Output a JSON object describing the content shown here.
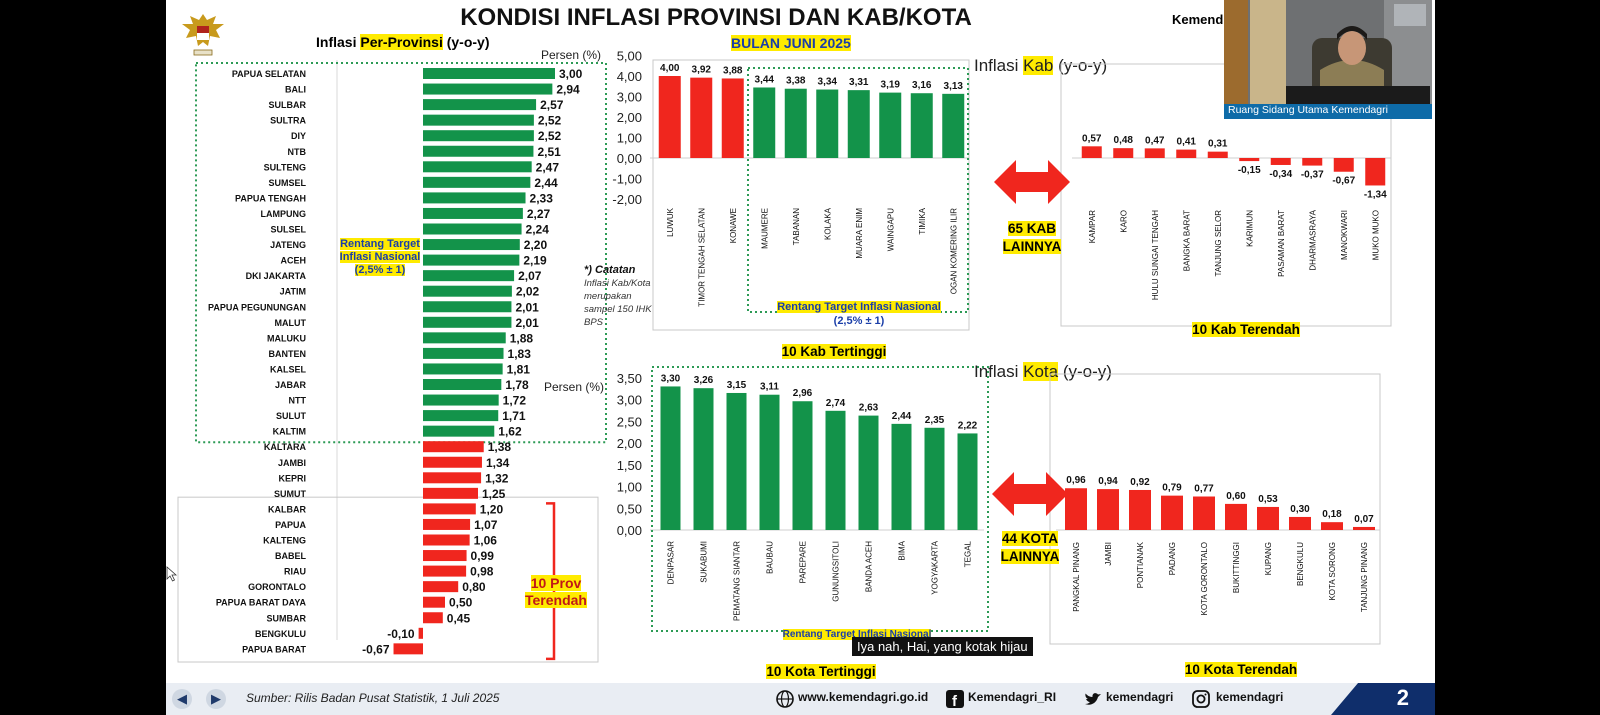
{
  "title": "KONDISI INFLASI PROVINSI DAN KAB/KOTA",
  "month": "BULAN JUNI 2025",
  "header_right": "Kemend",
  "colors": {
    "green": "#13934a",
    "red": "#f0261e",
    "highlight": "#ffeb00",
    "dotted": "#2c9a55",
    "navy": "#0f2e6b"
  },
  "prov": {
    "title_pre": "Inflasi ",
    "title_hl": "Per-Provinsi",
    "title_post": " (y-o-y)",
    "unit": "Persen (%)",
    "target_box": [
      "Rentang Target",
      "Inflasi Nasional",
      "(2,5% ± 1)"
    ],
    "bottom_label": [
      "10 Prov",
      "Terendah"
    ]
  },
  "note": {
    "head": "*) Catatan",
    "body": "Inflasi Kab/Kota merupakan sampel 150 IHK BPS"
  },
  "kab": {
    "title_pre": "Inflasi ",
    "title_hl": "Kab",
    "title_post": " (y-o-y)",
    "high_label": "10 Kab Tertinggi",
    "low_label": "10 Kab Terendah",
    "others": [
      "65 KAB",
      "LAINNYA"
    ],
    "target": [
      "Rentang Target Inflasi Nasional",
      "(2,5% ± 1)"
    ]
  },
  "kota": {
    "title_pre": "Inflasi ",
    "title_hl": "Kota",
    "title_post": " (y-o-y)",
    "unit": "Persen (%)",
    "high_label": "10 Kota Tertinggi",
    "low_label": "10 Kota Terendah",
    "others": [
      "44 KOTA",
      "LAINNYA"
    ],
    "target": "Rentang Target Inflasi Nasional"
  },
  "footer": {
    "source": "Sumber: Rilis Badan Pusat Statistik, 1 Juli 2025",
    "web": "www.kemendagri.go.id",
    "fb": "Kemendagri_RI",
    "tw": "kemendagri",
    "ig": "kemendagri",
    "page": "2"
  },
  "video_label": "Ruang Sidang Utama Kemendagri",
  "caption": "Iya nah, Hai, yang kotak hijau",
  "chart_data": [
    {
      "id": "prov",
      "type": "bar",
      "orientation": "horizontal",
      "categories": [
        "PAPUA SELATAN",
        "BALI",
        "SULBAR",
        "SULTRA",
        "DIY",
        "NTB",
        "SULTENG",
        "SUMSEL",
        "PAPUA TENGAH",
        "LAMPUNG",
        "SULSEL",
        "JATENG",
        "ACEH",
        "DKI JAKARTA",
        "JATIM",
        "PAPUA PEGUNUNGAN",
        "MALUT",
        "MALUKU",
        "BANTEN",
        "KALSEL",
        "JABAR",
        "NTT",
        "SULUT",
        "KALTIM",
        "KALTARA",
        "JAMBI",
        "KEPRI",
        "SUMUT",
        "KALBAR",
        "PAPUA",
        "KALTENG",
        "BABEL",
        "RIAU",
        "GORONTALO",
        "PAPUA BARAT DAYA",
        "SUMBAR",
        "BENGKULU",
        "PAPUA BARAT"
      ],
      "values": [
        3.0,
        2.94,
        2.57,
        2.52,
        2.52,
        2.51,
        2.47,
        2.44,
        2.33,
        2.27,
        2.24,
        2.2,
        2.19,
        2.07,
        2.02,
        2.01,
        2.01,
        1.88,
        1.83,
        1.81,
        1.78,
        1.72,
        1.71,
        1.62,
        1.38,
        1.34,
        1.32,
        1.25,
        1.2,
        1.07,
        1.06,
        0.99,
        0.98,
        0.8,
        0.5,
        0.45,
        -0.1,
        -0.67
      ],
      "labels": [
        "3,00",
        "2,94",
        "2,57",
        "2,52",
        "2,52",
        "2,51",
        "2,47",
        "2,44",
        "2,33",
        "2,27",
        "2,24",
        "2,20",
        "2,19",
        "2,07",
        "2,02",
        "2,01",
        "2,01",
        "1,88",
        "1,83",
        "1,81",
        "1,78",
        "1,72",
        "1,71",
        "1,62",
        "1,38",
        "1,34",
        "1,32",
        "1,25",
        "1,20",
        "1,07",
        "1,06",
        "0,99",
        "0,98",
        "0,80",
        "0,50",
        "0,45",
        "-0,10",
        "-0,67"
      ],
      "green_count": 24
    },
    {
      "id": "kab_high",
      "type": "bar",
      "categories": [
        "LUWUK",
        "TIMOR TENGAH SELATAN",
        "KONAWE",
        "MAUMERE",
        "TABANAN",
        "KOLAKA",
        "MUARA ENIM",
        "WAINGAPU",
        "TIMIKA",
        "OGAN KOMERING ILIR"
      ],
      "values": [
        4.0,
        3.92,
        3.88,
        3.44,
        3.38,
        3.34,
        3.31,
        3.19,
        3.16,
        3.13
      ],
      "labels": [
        "4,00",
        "3,92",
        "3,88",
        "3,44",
        "3,38",
        "3,34",
        "3,31",
        "3,19",
        "3,16",
        "3,13"
      ],
      "ylim": [
        -2,
        5
      ],
      "yticks": [
        "5,00",
        "4,00",
        "3,00",
        "2,00",
        "1,00",
        "0,00",
        "-1,00",
        "-2,00"
      ],
      "unit": "Persen (%)",
      "red_count": 3
    },
    {
      "id": "kab_low",
      "type": "bar",
      "categories": [
        "KAMPAR",
        "KARO",
        "HULU SUNGAI TENGAH",
        "BANGKA BARAT",
        "TANJUNG SELOR",
        "KARIMUN",
        "PASAMAN BARAT",
        "DHARMASRAYA",
        "MANOKWARI",
        "MUKO MUKO"
      ],
      "values": [
        0.57,
        0.48,
        0.47,
        0.41,
        0.31,
        -0.15,
        -0.34,
        -0.37,
        -0.67,
        -1.34
      ],
      "labels": [
        "0,57",
        "0,48",
        "0,47",
        "0,41",
        "0,31",
        "-0,15",
        "-0,34",
        "-0,37",
        "-0,67",
        "-1,34"
      ],
      "ylim": [
        -2,
        5
      ]
    },
    {
      "id": "kota_high",
      "type": "bar",
      "categories": [
        "DENPASAR",
        "SUKABUMI",
        "PEMATANG SIANTAR",
        "BAUBAU",
        "PAREPARE",
        "GUNUNGSITOLI",
        "BANDA ACEH",
        "BIMA",
        "YOGYAKARTA",
        "TEGAL"
      ],
      "values": [
        3.3,
        3.26,
        3.15,
        3.11,
        2.96,
        2.74,
        2.63,
        2.44,
        2.35,
        2.22
      ],
      "labels": [
        "3,30",
        "3,26",
        "3,15",
        "3,11",
        "2,96",
        "2,74",
        "2,63",
        "2,44",
        "2,35",
        "2,22"
      ],
      "ylim": [
        0,
        3.5
      ],
      "yticks": [
        "3,50",
        "3,00",
        "2,50",
        "2,00",
        "1,50",
        "1,00",
        "0,50",
        "0,00"
      ]
    },
    {
      "id": "kota_low",
      "type": "bar",
      "categories": [
        "PANGKAL PINANG",
        "JAMBI",
        "PONTIANAK",
        "PADANG",
        "KOTA GORONTALO",
        "BUKITTINGGI",
        "KUPANG",
        "BENGKULU",
        "KOTA SORONG",
        "TANJUNG PINANG"
      ],
      "values": [
        0.96,
        0.94,
        0.92,
        0.79,
        0.77,
        0.6,
        0.53,
        0.3,
        0.18,
        0.07
      ],
      "labels": [
        "0,96",
        "0,94",
        "0,92",
        "0,79",
        "0,77",
        "0,60",
        "0,53",
        "0,30",
        "0,18",
        "0,07"
      ],
      "ylim": [
        0,
        3.5
      ]
    }
  ]
}
